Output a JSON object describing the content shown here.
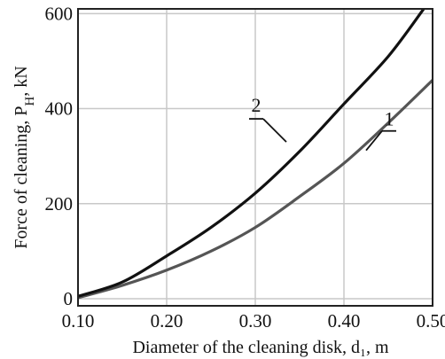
{
  "chart_data": {
    "type": "line",
    "xlabel": "Diameter of the cleaning  disk, d₁, m",
    "ylabel": "Force of cleaning,  P",
    "ylabel_sub": "H",
    "ylabel_unit": ", kN",
    "xlim": [
      0.1,
      0.5
    ],
    "ylim": [
      -15,
      610
    ],
    "xticks": [
      0.1,
      0.2,
      0.3,
      0.4,
      0.5
    ],
    "xtick_labels": [
      "0.10",
      "0.20",
      "0.30",
      "0.40",
      "0.50"
    ],
    "yticks": [
      0,
      200,
      400,
      600
    ],
    "ytick_labels": [
      "0",
      "200",
      "400",
      "600"
    ],
    "grid": true,
    "legend": "none",
    "series": [
      {
        "name": "1",
        "color": "#555555",
        "x": [
          0.1,
          0.15,
          0.2,
          0.25,
          0.3,
          0.35,
          0.4,
          0.45,
          0.5
        ],
        "y": [
          2,
          28,
          60,
          100,
          150,
          215,
          285,
          370,
          460
        ]
      },
      {
        "name": "2",
        "color": "#111111",
        "x": [
          0.1,
          0.15,
          0.2,
          0.25,
          0.3,
          0.35,
          0.4,
          0.45,
          0.49
        ],
        "y": [
          5,
          35,
          90,
          150,
          222,
          310,
          410,
          510,
          610
        ]
      }
    ],
    "annotations": [
      {
        "text": "1",
        "series": "1",
        "anchor": [
          0.425,
          312
        ]
      },
      {
        "text": "2",
        "series": "2",
        "anchor": [
          0.335,
          330
        ]
      }
    ]
  }
}
